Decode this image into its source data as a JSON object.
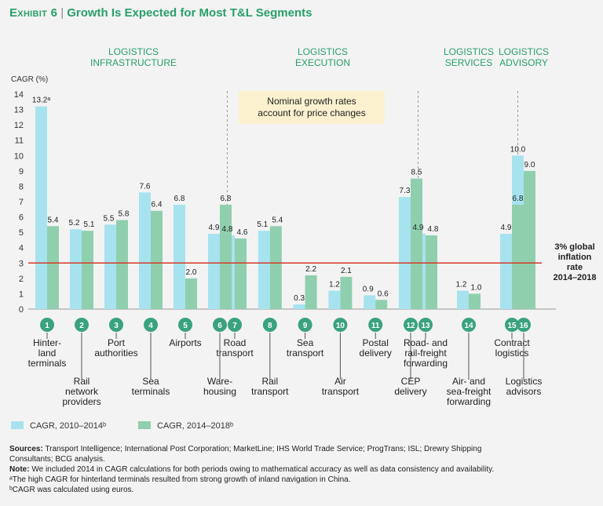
{
  "title": {
    "exhibit": "Exhibit 6",
    "separator": "|",
    "headline": "Growth Is Expected for Most T&L Segments"
  },
  "colors": {
    "series1": "#a6e3ee",
    "series2": "#8fcfae",
    "title": "#29a06a",
    "inflation_line": "#d63a2a",
    "badge": "#3aa27e",
    "group_label": "#27a06b",
    "note_box": "#fbf1cf"
  },
  "chart_data": {
    "type": "bar",
    "ylabel": "CAGR (%)",
    "ylim": [
      0,
      14
    ],
    "yticks": [
      0,
      1,
      2,
      3,
      4,
      5,
      6,
      7,
      8,
      9,
      10,
      11,
      12,
      13,
      14
    ],
    "categories": [
      {
        "num": "1",
        "label": [
          "Hinter-",
          "land",
          "terminals"
        ],
        "row": "top"
      },
      {
        "num": "2",
        "label": [
          "Rail",
          "network",
          "providers"
        ],
        "row": "bottom"
      },
      {
        "num": "3",
        "label": [
          "Port",
          "authorities"
        ],
        "row": "top"
      },
      {
        "num": "4",
        "label": [
          "Sea",
          "terminals"
        ],
        "row": "bottom"
      },
      {
        "num": "5",
        "label": [
          "Airports"
        ],
        "row": "top"
      },
      {
        "num": "6",
        "label": [
          "Ware-",
          "housing"
        ],
        "row": "bottom"
      },
      {
        "num": "7",
        "label": [
          "Road",
          "transport"
        ],
        "row": "top"
      },
      {
        "num": "8",
        "label": [
          "Rail",
          "transport"
        ],
        "row": "bottom"
      },
      {
        "num": "9",
        "label": [
          "Sea",
          "transport"
        ],
        "row": "top"
      },
      {
        "num": "10",
        "label": [
          "Air",
          "transport"
        ],
        "row": "bottom"
      },
      {
        "num": "11",
        "label": [
          "Postal",
          "delivery"
        ],
        "row": "top"
      },
      {
        "num": "12",
        "label": [
          "CEP",
          "delivery"
        ],
        "row": "bottom"
      },
      {
        "num": "13",
        "label": [
          "Road- and",
          "rail-freight",
          "forwarding"
        ],
        "row": "top"
      },
      {
        "num": "14",
        "label": [
          "Air- and",
          "sea-freight",
          "forwarding"
        ],
        "row": "bottom"
      },
      {
        "num": "15",
        "label": [
          "Contract",
          "logistics"
        ],
        "row": "top"
      },
      {
        "num": "16",
        "label": [
          "Logistics",
          "advisors"
        ],
        "row": "bottom"
      }
    ],
    "series": [
      {
        "name": "CAGR, 2010–2014ᵇ",
        "values": [
          13.2,
          5.2,
          5.5,
          7.6,
          6.8,
          4.9,
          4.8,
          5.1,
          0.3,
          1.2,
          0.9,
          7.3,
          4.9,
          1.2,
          4.9,
          10.0
        ],
        "labels": [
          "13.2ᵃ",
          "5.2",
          "5.5",
          "7.6",
          "6.8",
          "4.9",
          "4.8",
          "5.1",
          "0.3",
          "1.2",
          "0.9",
          "7.3",
          "4.9",
          "1.2",
          "4.9",
          "10.0"
        ]
      },
      {
        "name": "CAGR, 2014–2018ᵇ",
        "values": [
          5.4,
          5.1,
          5.8,
          6.4,
          2.0,
          6.8,
          4.6,
          5.4,
          2.2,
          2.1,
          0.6,
          8.5,
          4.8,
          1.0,
          6.8,
          9.0
        ],
        "labels": [
          "5.4",
          "5.1",
          "5.8",
          "6.4",
          "2.0",
          "6.8",
          "4.6",
          "5.4",
          "2.2",
          "2.1",
          "0.6",
          "8.5",
          "4.8",
          "1.0",
          "6.8",
          "9.0"
        ]
      }
    ],
    "groups": [
      {
        "label": [
          "LOGISTICS",
          "INFRASTRUCTURE"
        ],
        "start": 0,
        "end": 5
      },
      {
        "label": [
          "LOGISTICS",
          "EXECUTION"
        ],
        "start": 6,
        "end": 11
      },
      {
        "label": [
          "LOGISTICS",
          "SERVICES"
        ],
        "start": 12,
        "end": 14
      },
      {
        "label": [
          "LOGISTICS",
          "ADVISORY"
        ],
        "start": 15,
        "end": 15
      }
    ],
    "reference_line": {
      "value": 3,
      "label": [
        "3% global",
        "inflation",
        "rate",
        "2014–2018"
      ]
    },
    "annotation": [
      "Nominal growth rates",
      "account for price changes"
    ]
  },
  "footnotes": {
    "sources_label": "Sources:",
    "sources_text": " Transport Intelligence; International Post Corporation; MarketLine; IHS World Trade Service; ProgTrans; ISL; Drewry Shipping",
    "sources_text2": "Consultants; BCG analysis.",
    "note_label": "Note:",
    "note_text": " We included 2014 in CAGR calculations for both periods owing to mathematical accuracy as well as data consistency and availability.",
    "footnote_a": "ᵃThe high CAGR for hinterland terminals resulted from strong growth of inland navigation in China.",
    "footnote_b": "ᵇCAGR was calculated using euros."
  }
}
